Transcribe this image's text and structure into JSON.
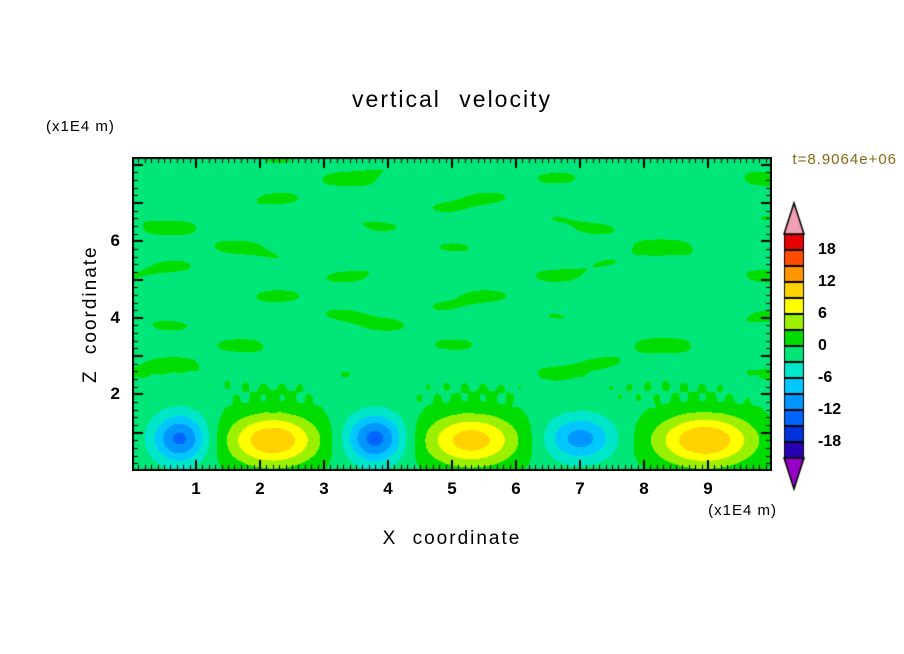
{
  "chart_data": {
    "type": "heatmap",
    "title": "vertical velocity",
    "xlabel": "X coordinate",
    "ylabel": "Z coordinate",
    "x_unit": "(x1E4 m)",
    "y_unit": "(x1E4 m)",
    "timestamp": "t=8.9064e+06",
    "timestamp_color": "#8B6914",
    "xlim": [
      0,
      10
    ],
    "ylim": [
      0,
      8.2
    ],
    "xticks": [
      1,
      2,
      3,
      4,
      5,
      6,
      7,
      8,
      9
    ],
    "yticks": [
      2,
      4,
      6
    ],
    "contour_interval": 3,
    "levels": [
      -21,
      -18,
      -15,
      -12,
      -9,
      -6,
      -3,
      0,
      3,
      6,
      9,
      12,
      15,
      18,
      21
    ],
    "colorbar_labels": [
      18,
      12,
      6,
      0,
      -6,
      -12,
      -18
    ],
    "band_colors": [
      "#9600C8",
      "#2800B4",
      "#0032DC",
      "#0064FF",
      "#0096FF",
      "#00C8FF",
      "#00E6C8",
      "#00E678",
      "#00DC00",
      "#9BF000",
      "#FFFF00",
      "#FFD200",
      "#FF9600",
      "#FF4B00",
      "#E60000",
      "#F0A0B4"
    ],
    "legend_position": "right",
    "grid": false,
    "field": {
      "base": -0.85,
      "cells": [
        {
          "x": 0.75,
          "z": 0.85,
          "sx": 0.3,
          "sz": 0.45,
          "amp": -12.0
        },
        {
          "x": 2.2,
          "z": 0.8,
          "sx": 0.5,
          "sz": 0.48,
          "amp": 12.5
        },
        {
          "x": 3.8,
          "z": 0.85,
          "sx": 0.32,
          "sz": 0.45,
          "amp": -12.5
        },
        {
          "x": 5.3,
          "z": 0.8,
          "sx": 0.52,
          "sz": 0.48,
          "amp": 11.5
        },
        {
          "x": 7.0,
          "z": 0.85,
          "sx": 0.38,
          "sz": 0.42,
          "amp": -9.5
        },
        {
          "x": 8.95,
          "z": 0.8,
          "sx": 0.55,
          "sz": 0.48,
          "amp": 12.8
        }
      ],
      "waves": [
        {
          "a": 1.0,
          "kx": 2.0,
          "px": 0.6,
          "kz": 5.0,
          "pz": 0.9
        },
        {
          "a": 0.6,
          "kx": 3.7,
          "px": 2.3,
          "kz": 7.3,
          "pz": 2.6
        },
        {
          "a": 0.45,
          "kx": 0.9,
          "px": 4.1,
          "kz": 2.1,
          "pz": 5.0
        }
      ],
      "wave_onset_z": [
        1.4,
        2.4
      ],
      "speckle": {
        "a": 1.15,
        "kx": 22.0,
        "px": 0.3,
        "kz": 9.0,
        "pz": 0.4,
        "zc": 2.05,
        "zw": 0.33
      }
    }
  }
}
